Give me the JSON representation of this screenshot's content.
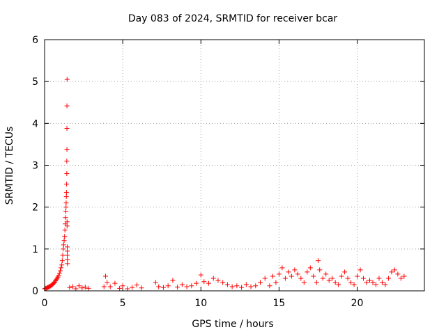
{
  "chart_data": {
    "type": "scatter",
    "title": "Day 083 of 2024, SRMTID for receiver bcar",
    "xlabel": "GPS time / hours",
    "ylabel": "SRMTID / TECUs",
    "xlim": [
      0,
      24.3
    ],
    "ylim": [
      0,
      6
    ],
    "xticks": [
      0,
      5,
      10,
      15,
      20
    ],
    "xtick_labels": [
      "0",
      "5",
      "10",
      "15",
      "20"
    ],
    "yticks": [
      0,
      1,
      2,
      3,
      4,
      5,
      6
    ],
    "ytick_labels": [
      "0",
      "1",
      "2",
      "3",
      "4",
      "5",
      "6"
    ],
    "grid": true,
    "marker": "+",
    "color": "#ff0000",
    "series": [
      {
        "name": "SRMTID",
        "x": [
          0.0,
          0.05,
          0.1,
          0.15,
          0.2,
          0.25,
          0.3,
          0.35,
          0.4,
          0.45,
          0.5,
          0.55,
          0.6,
          0.65,
          0.7,
          0.75,
          0.8,
          0.85,
          0.9,
          0.95,
          1.0,
          1.05,
          1.1,
          1.13,
          1.16,
          1.19,
          1.22,
          1.25,
          1.28,
          1.3,
          1.32,
          1.34,
          1.36,
          1.37,
          1.38,
          1.39,
          1.4,
          1.41,
          1.42,
          1.42,
          1.43,
          1.43,
          1.43,
          1.44,
          1.44,
          1.44,
          1.45,
          1.45,
          1.45,
          1.46,
          1.46,
          1.6,
          1.8,
          2.0,
          2.2,
          2.4,
          2.6,
          2.8,
          3.8,
          3.9,
          4.0,
          4.2,
          4.5,
          4.8,
          5.0,
          5.3,
          5.6,
          5.9,
          6.2,
          7.1,
          7.3,
          7.6,
          7.9,
          8.2,
          8.5,
          8.8,
          9.1,
          9.4,
          9.7,
          10.0,
          10.2,
          10.5,
          10.8,
          11.1,
          11.4,
          11.7,
          12.0,
          12.3,
          12.6,
          12.9,
          13.2,
          13.5,
          13.8,
          14.1,
          14.4,
          14.6,
          14.8,
          15.0,
          15.2,
          15.4,
          15.6,
          15.8,
          16.0,
          16.2,
          16.4,
          16.6,
          16.8,
          17.0,
          17.2,
          17.4,
          17.5,
          17.6,
          17.8,
          18.0,
          18.2,
          18.4,
          18.6,
          18.8,
          19.0,
          19.2,
          19.4,
          19.6,
          19.8,
          20.0,
          20.2,
          20.4,
          20.6,
          20.8,
          21.0,
          21.2,
          21.4,
          21.6,
          21.8,
          22.0,
          22.2,
          22.4,
          22.6,
          22.8,
          23.0
        ],
        "y": [
          0.05,
          0.06,
          0.06,
          0.07,
          0.08,
          0.09,
          0.1,
          0.11,
          0.12,
          0.14,
          0.15,
          0.17,
          0.19,
          0.21,
          0.24,
          0.27,
          0.3,
          0.33,
          0.37,
          0.42,
          0.48,
          0.55,
          0.62,
          0.72,
          0.85,
          1.0,
          1.1,
          1.2,
          1.3,
          1.45,
          1.6,
          1.75,
          1.9,
          2.0,
          2.1,
          2.25,
          2.35,
          2.55,
          2.8,
          3.1,
          3.38,
          3.88,
          4.42,
          5.05,
          1.55,
          1.65,
          1.05,
          0.95,
          0.85,
          0.75,
          0.65,
          0.08,
          0.1,
          0.05,
          0.12,
          0.07,
          0.09,
          0.06,
          0.1,
          0.35,
          0.2,
          0.1,
          0.18,
          0.06,
          0.12,
          0.05,
          0.08,
          0.14,
          0.07,
          0.2,
          0.1,
          0.08,
          0.12,
          0.25,
          0.09,
          0.15,
          0.1,
          0.12,
          0.18,
          0.38,
          0.22,
          0.18,
          0.3,
          0.25,
          0.2,
          0.15,
          0.1,
          0.12,
          0.08,
          0.15,
          0.1,
          0.12,
          0.2,
          0.3,
          0.12,
          0.35,
          0.2,
          0.4,
          0.55,
          0.3,
          0.45,
          0.35,
          0.5,
          0.4,
          0.3,
          0.2,
          0.45,
          0.55,
          0.35,
          0.2,
          0.72,
          0.5,
          0.3,
          0.4,
          0.25,
          0.3,
          0.2,
          0.15,
          0.35,
          0.45,
          0.3,
          0.2,
          0.15,
          0.35,
          0.5,
          0.3,
          0.2,
          0.25,
          0.2,
          0.15,
          0.3,
          0.2,
          0.15,
          0.3,
          0.45,
          0.5,
          0.4,
          0.3,
          0.35
        ]
      }
    ]
  }
}
